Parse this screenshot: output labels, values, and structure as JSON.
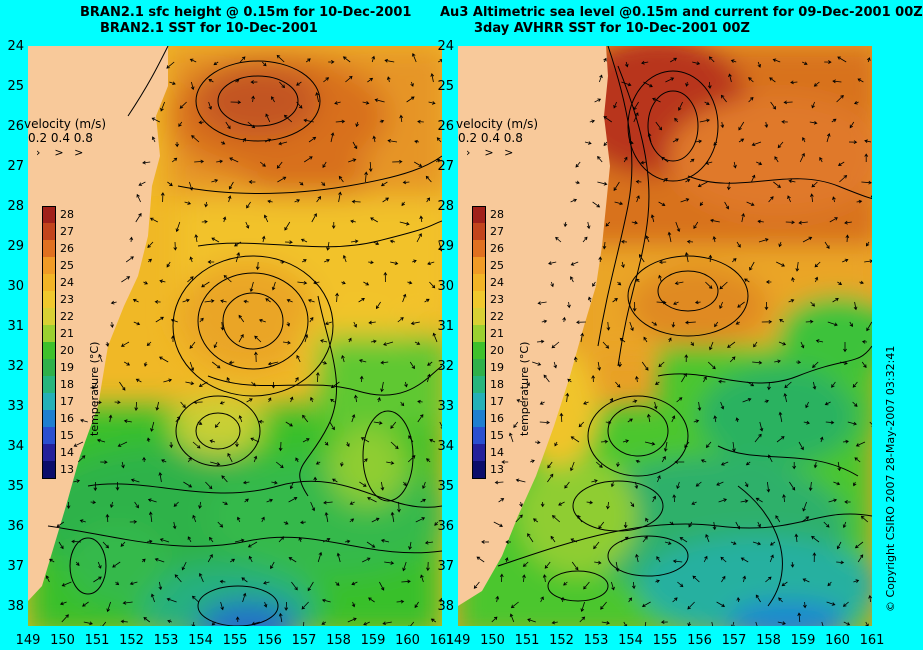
{
  "left_panel": {
    "title_line1": "BRAN2.1 sfc height @ 0.15m for 10-Dec-2001",
    "title_line2": "BRAN2.1 SST for 10-Dec-2001"
  },
  "right_panel": {
    "title_line1": "Au3 Altimetric sea level  @0.15m and current for 09-Dec-2001 00Z",
    "title_line2": "3day AVHRR SST for 10-Dec-2001 00Z"
  },
  "velocity_legend": {
    "title": "velocity (m/s)",
    "values": "0.2 0.4 0.8"
  },
  "colorbar": {
    "title": "temperature (°C)",
    "labels": [
      "28",
      "27",
      "26",
      "25",
      "24",
      "23",
      "22",
      "21",
      "20",
      "19",
      "18",
      "17",
      "16",
      "15",
      "14",
      "13"
    ],
    "colors": [
      "#a0201a",
      "#c3441c",
      "#e07020",
      "#f09b26",
      "#f2b426",
      "#f0c82d",
      "#d8d034",
      "#9bd030",
      "#3fc12c",
      "#2fb04a",
      "#26b57d",
      "#25b0b7",
      "#1e7fd0",
      "#2a4fcf",
      "#24209a",
      "#0b0d6a"
    ]
  },
  "latitude_labels": [
    "24",
    "25",
    "26",
    "27",
    "28",
    "29",
    "30",
    "31",
    "32",
    "33",
    "34",
    "35",
    "36",
    "37",
    "38"
  ],
  "left_longitude_labels": [
    "149",
    "150",
    "151",
    "152",
    "153",
    "154",
    "155",
    "156",
    "157",
    "158",
    "159",
    "160",
    "161"
  ],
  "right_longitude_labels": [
    "149",
    "150",
    "151",
    "152",
    "153",
    "154",
    "155",
    "156",
    "157",
    "158",
    "159",
    "160",
    "161"
  ],
  "copyright": "© Copyright CSIRO 2007   28-May-2007 03:32:41",
  "colors": {
    "background": "#00ffff",
    "land": "#f8c99a"
  }
}
